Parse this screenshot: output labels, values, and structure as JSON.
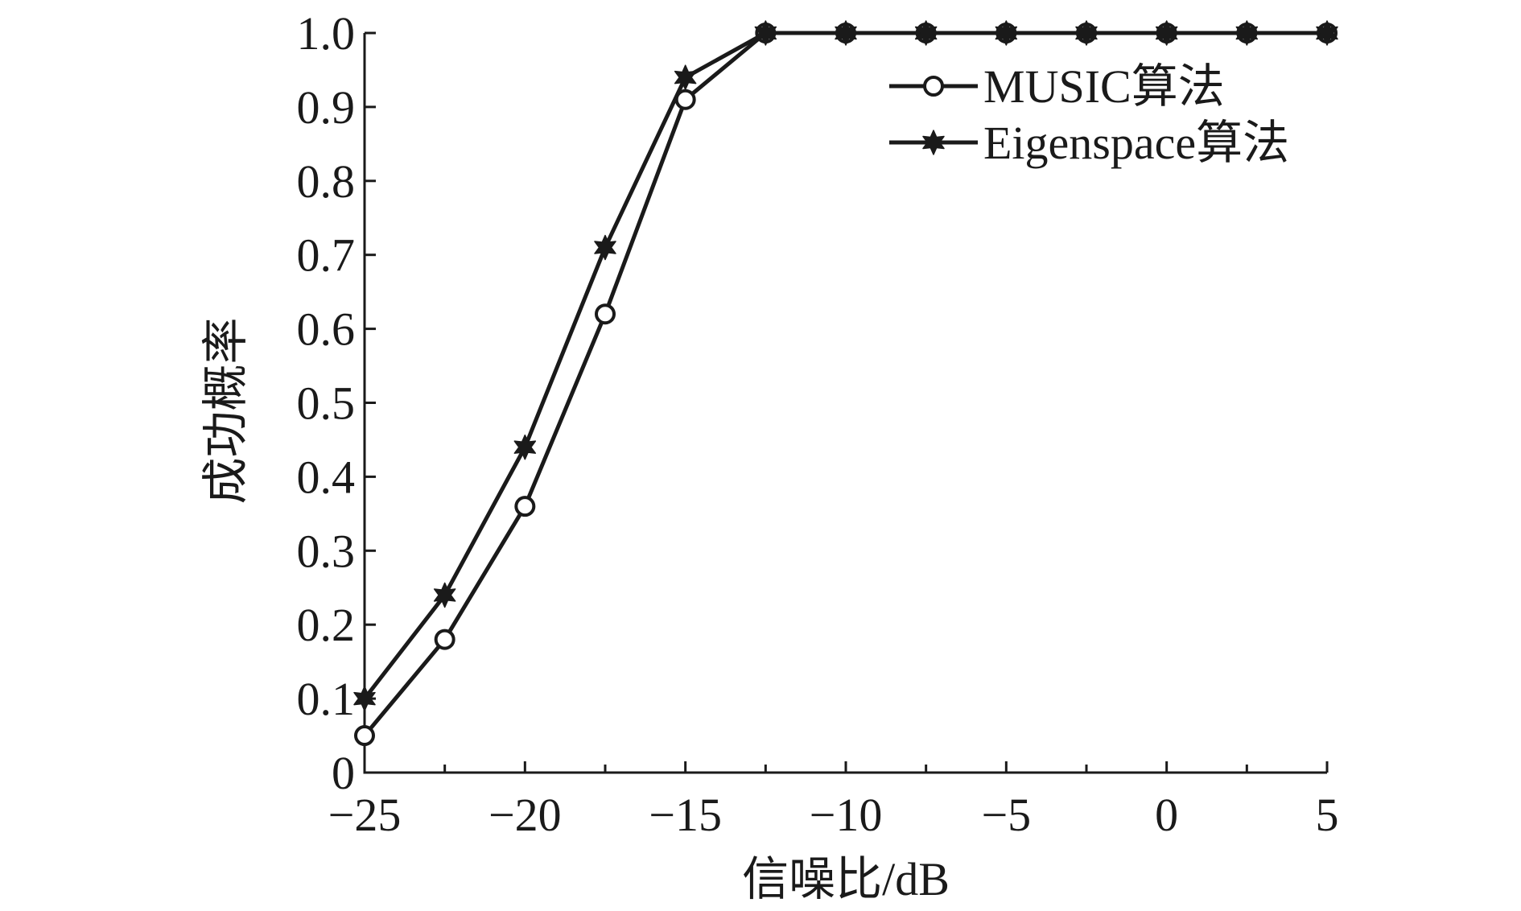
{
  "chart_data": {
    "type": "line",
    "title": "",
    "xlabel": "信噪比/dB",
    "ylabel": "成功概率",
    "xlim": [
      -25,
      5
    ],
    "ylim": [
      0,
      1.0
    ],
    "xticks": [
      -25,
      -20,
      -15,
      -10,
      -5,
      0,
      5
    ],
    "xtick_labels": [
      "−25",
      "−20",
      "−15",
      "−10",
      "−5",
      "0",
      "5"
    ],
    "yticks": [
      0,
      0.1,
      0.2,
      0.3,
      0.4,
      0.5,
      0.6,
      0.7,
      0.8,
      0.9,
      1.0
    ],
    "ytick_labels": [
      "0",
      "0.1",
      "0.2",
      "0.3",
      "0.4",
      "0.5",
      "0.6",
      "0.7",
      "0.8",
      "0.9",
      "1.0"
    ],
    "grid": false,
    "legend_position": "top-right",
    "x": [
      -25,
      -22.5,
      -20,
      -17.5,
      -15,
      -12.5,
      -10,
      -7.5,
      -5,
      -2.5,
      0,
      2.5,
      5
    ],
    "series": [
      {
        "name": "MUSIC算法",
        "marker": "circle",
        "color": "#1a1a1a",
        "values": [
          0.05,
          0.18,
          0.36,
          0.62,
          0.91,
          1.0,
          1.0,
          1.0,
          1.0,
          1.0,
          1.0,
          1.0,
          1.0
        ]
      },
      {
        "name": "Eigenspace算法",
        "marker": "star",
        "color": "#1a1a1a",
        "values": [
          0.1,
          0.24,
          0.44,
          0.71,
          0.94,
          1.0,
          1.0,
          1.0,
          1.0,
          1.0,
          1.0,
          1.0,
          1.0
        ]
      }
    ]
  }
}
